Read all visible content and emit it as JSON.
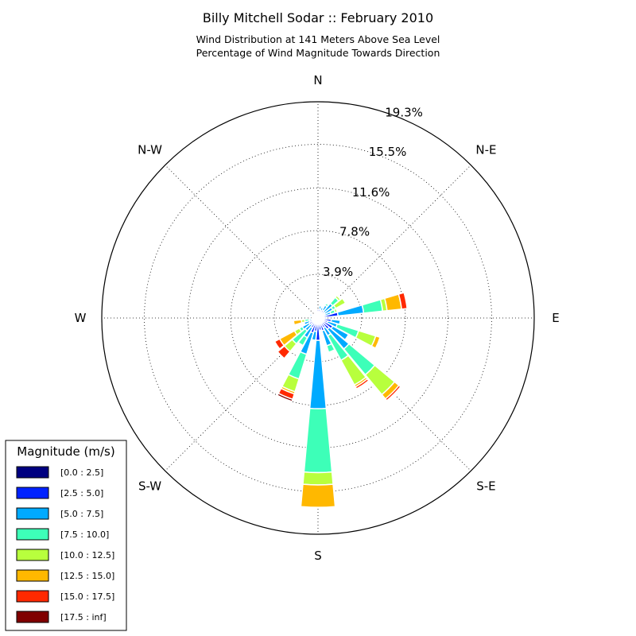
{
  "chart_data": {
    "type": "windrose",
    "title": "Billy Mitchell Sodar :: February 2010",
    "subtitle_lines": [
      "Wind Distribution at 141 Meters Above Sea Level",
      "Percentage of Wind Magnitude Towards Direction"
    ],
    "directions": [
      "N",
      "N-E",
      "E",
      "S-E",
      "S",
      "S-W",
      "W",
      "N-W"
    ],
    "radial_ticks": [
      3.9,
      7.8,
      11.6,
      15.5,
      19.3
    ],
    "radial_tick_labels": [
      "3.9%",
      "7.8%",
      "11.6%",
      "15.5%",
      "19.3%"
    ],
    "r_max": 19.3,
    "bin_step_degrees": 11.25,
    "bin_width_degrees": 10.4,
    "legend": {
      "title": "Magnitude (m/s)",
      "placement": "lower-left",
      "entries": [
        "[0.0 : 2.5]",
        "[2.5 : 5.0]",
        "[5.0 : 7.5]",
        "[7.5 : 10.0]",
        "[10.0 : 12.5]",
        "[12.5 : 15.0]",
        "[15.0 : 17.5]",
        "[17.5 : inf]"
      ]
    },
    "colors": [
      "#000080",
      "#0022ff",
      "#00aaff",
      "#3dffb8",
      "#b8ff3d",
      "#ffb800",
      "#ff2900",
      "#800000"
    ],
    "bins": [
      {
        "angle": 0,
        "values": [
          0.2,
          0.6,
          0,
          0,
          0,
          0,
          0,
          0
        ]
      },
      {
        "angle": 11.25,
        "values": [
          0.2,
          0.6,
          0.3,
          0,
          0,
          0,
          0,
          0
        ]
      },
      {
        "angle": 22.5,
        "values": [
          0.2,
          0.5,
          0.3,
          0,
          0,
          0,
          0,
          0
        ]
      },
      {
        "angle": 33.75,
        "values": [
          0.2,
          0.6,
          0.5,
          0.2,
          0,
          0,
          0,
          0
        ]
      },
      {
        "angle": 45,
        "values": [
          0.2,
          0.5,
          1.0,
          0.7,
          0.2,
          0,
          0,
          0
        ]
      },
      {
        "angle": 56.25,
        "values": [
          0.2,
          0.5,
          0.8,
          0.3,
          1.0,
          0.1,
          0,
          0
        ]
      },
      {
        "angle": 67.5,
        "values": [
          0.2,
          0.4,
          0.6,
          0.4,
          0.2,
          0,
          0,
          0
        ]
      },
      {
        "angle": 78.75,
        "values": [
          0.2,
          1.6,
          2.3,
          1.7,
          0.4,
          1.3,
          0.5,
          0
        ]
      },
      {
        "angle": 90,
        "values": [
          0.2,
          0.4,
          0.2,
          0,
          0,
          0,
          0,
          0
        ]
      },
      {
        "angle": 101.25,
        "values": [
          0.2,
          1.0,
          0.8,
          0,
          0,
          0,
          0,
          0
        ]
      },
      {
        "angle": 112.5,
        "values": [
          0.2,
          0.7,
          0.9,
          2.0,
          1.6,
          0.4,
          0,
          0
        ]
      },
      {
        "angle": 123.75,
        "values": [
          0.2,
          1.3,
          1.6,
          0,
          0,
          0,
          0,
          0
        ]
      },
      {
        "angle": 135,
        "values": [
          0.2,
          1.1,
          2.3,
          3.0,
          2.3,
          0.5,
          0.2,
          0.1
        ]
      },
      {
        "angle": 146.25,
        "values": [
          0.2,
          0.8,
          0.8,
          2.5,
          2.5,
          0.2,
          0.2,
          0.1
        ]
      },
      {
        "angle": 157.5,
        "values": [
          0.2,
          1.0,
          1.4,
          0.6,
          0,
          0,
          0,
          0
        ]
      },
      {
        "angle": 168.75,
        "values": [
          0.2,
          0.9,
          0,
          0,
          0,
          0,
          0,
          0
        ]
      },
      {
        "angle": 180,
        "values": [
          0.2,
          1.8,
          6.1,
          5.7,
          1.1,
          2.0,
          0,
          0
        ]
      },
      {
        "angle": 191.25,
        "values": [
          0.2,
          1.0,
          0.8,
          0,
          0,
          0,
          0,
          0
        ]
      },
      {
        "angle": 202.5,
        "values": [
          0.2,
          1.2,
          2.0,
          2.3,
          1.2,
          0.2,
          0.5,
          0.2
        ]
      },
      {
        "angle": 213.75,
        "values": [
          0.2,
          0.8,
          1.0,
          0.8,
          0,
          0,
          0,
          0
        ]
      },
      {
        "angle": 225,
        "values": [
          0.2,
          0.6,
          0.7,
          1.5,
          0.9,
          0,
          0.8,
          0
        ]
      },
      {
        "angle": 236.25,
        "values": [
          0.2,
          0.7,
          0.7,
          0.3,
          0.5,
          1.5,
          0.5,
          0
        ]
      },
      {
        "angle": 247.5,
        "values": [
          0.2,
          0.6,
          0.5,
          0,
          0,
          0,
          0,
          0
        ]
      },
      {
        "angle": 258.75,
        "values": [
          0.2,
          0.3,
          0.3,
          0.4,
          0.3,
          0.7,
          0,
          0
        ]
      },
      {
        "angle": 270,
        "values": [
          0.2,
          0.2,
          0,
          0,
          0,
          0,
          0,
          0
        ]
      },
      {
        "angle": 281.25,
        "values": [
          0.2,
          0.3,
          0,
          0,
          0,
          0,
          0,
          0
        ]
      },
      {
        "angle": 292.5,
        "values": [
          0.2,
          0.3,
          0.3,
          0,
          0,
          0,
          0,
          0
        ]
      },
      {
        "angle": 303.75,
        "values": [
          0.2,
          0.2,
          0,
          0,
          0,
          0,
          0,
          0
        ]
      },
      {
        "angle": 315,
        "values": [
          0.2,
          0.2,
          0,
          0,
          0,
          0,
          0,
          0
        ]
      },
      {
        "angle": 326.25,
        "values": [
          0.2,
          0.2,
          0,
          0,
          0,
          0,
          0,
          0
        ]
      },
      {
        "angle": 337.5,
        "values": [
          0.2,
          0.2,
          0,
          0,
          0,
          0,
          0,
          0
        ]
      },
      {
        "angle": 348.75,
        "values": [
          0.2,
          0.3,
          0,
          0,
          0,
          0,
          0,
          0
        ]
      }
    ]
  }
}
